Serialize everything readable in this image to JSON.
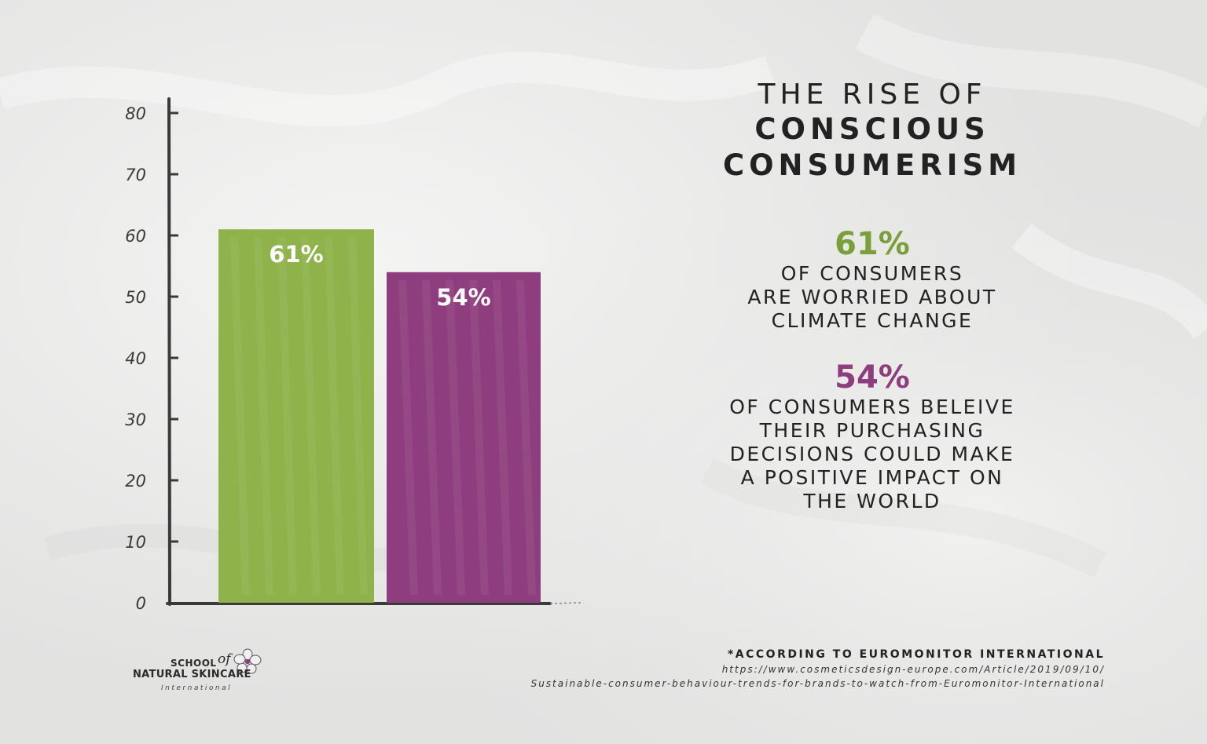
{
  "chart_data": {
    "type": "bar",
    "categories": [
      "",
      ""
    ],
    "values": [
      61,
      54
    ],
    "value_labels": [
      "61%",
      "54%"
    ],
    "ylim": [
      0,
      80
    ],
    "yticks": [
      0,
      10,
      20,
      30,
      40,
      50,
      60,
      70,
      80
    ],
    "grid": false,
    "colors": [
      "#8fb24a",
      "#8e3e7e"
    ]
  },
  "title": {
    "line1": "THE RISE OF",
    "line2": "CONSCIOUS",
    "line3": "CONSUMERISM"
  },
  "stats": [
    {
      "value": "61%",
      "color": "#7a9e3a",
      "lines": [
        "OF CONSUMERS",
        "ARE WORRIED ABOUT",
        "CLIMATE CHANGE"
      ]
    },
    {
      "value": "54%",
      "color": "#8e3e7e",
      "lines": [
        "OF CONSUMERS BELEIVE",
        "THEIR PURCHASING",
        "DECISIONS COULD MAKE",
        "A POSITIVE IMPACT ON",
        "THE WORLD"
      ]
    }
  ],
  "logo": {
    "school": "SCHOOL",
    "of": "of",
    "name": "NATURAL SKINCARE",
    "international": "International",
    "icon": "flower-icon"
  },
  "source": {
    "title": "*ACCORDING TO EUROMONITOR INTERNATIONAL",
    "url_line1": "https://www.cosmeticsdesign-europe.com/Article/2019/09/10/",
    "url_line2": "Sustainable-consumer-behaviour-trends-for-brands-to-watch-from-Euromonitor-International"
  }
}
